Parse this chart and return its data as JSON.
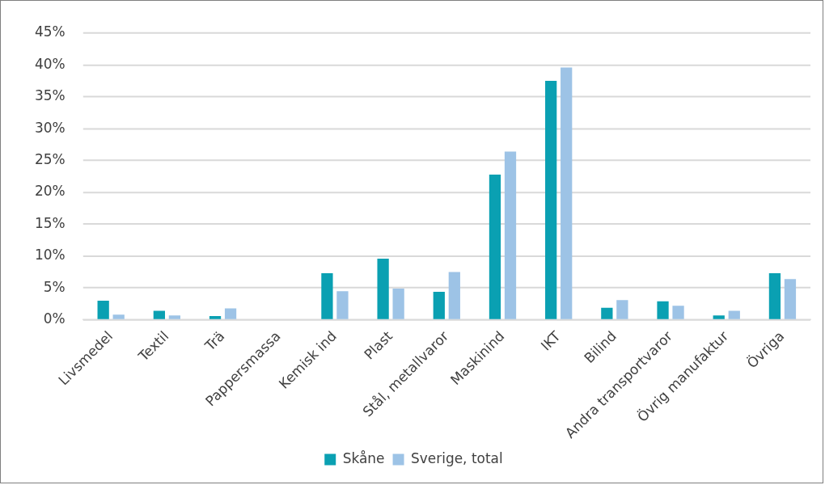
{
  "chart_data": {
    "type": "bar",
    "categories": [
      "Livsmedel",
      "Textil",
      "Trä",
      "Pappersmassa",
      "Kemisk ind",
      "Plast",
      "Stål, metallvaror",
      "Maskinind",
      "IKT",
      "Bilind",
      "Andra transportvaror",
      "Övrig manufaktur",
      "Övriga"
    ],
    "series": [
      {
        "name": "Skåne",
        "color": "#0aa0b2",
        "values": [
          3.0,
          1.4,
          0.6,
          0,
          7.3,
          9.6,
          4.4,
          22.8,
          37.5,
          1.9,
          2.9,
          0.7,
          7.3
        ]
      },
      {
        "name": "Sverige, total",
        "color": "#9dc3e6",
        "values": [
          0.8,
          0.7,
          1.8,
          0,
          4.5,
          4.9,
          7.5,
          26.4,
          39.6,
          3.1,
          2.2,
          1.4,
          6.4
        ]
      }
    ],
    "ylim": [
      0,
      45
    ],
    "yticks": [
      {
        "value": 0,
        "label": "0%"
      },
      {
        "value": 5,
        "label": "5%"
      },
      {
        "value": 10,
        "label": "10%"
      },
      {
        "value": 15,
        "label": "15%"
      },
      {
        "value": 20,
        "label": "20%"
      },
      {
        "value": 25,
        "label": "25%"
      },
      {
        "value": 30,
        "label": "30%"
      },
      {
        "value": 35,
        "label": "35%"
      },
      {
        "value": 40,
        "label": "40%"
      },
      {
        "value": 45,
        "label": "45%"
      }
    ],
    "grid": "y",
    "legend": "bottom"
  }
}
